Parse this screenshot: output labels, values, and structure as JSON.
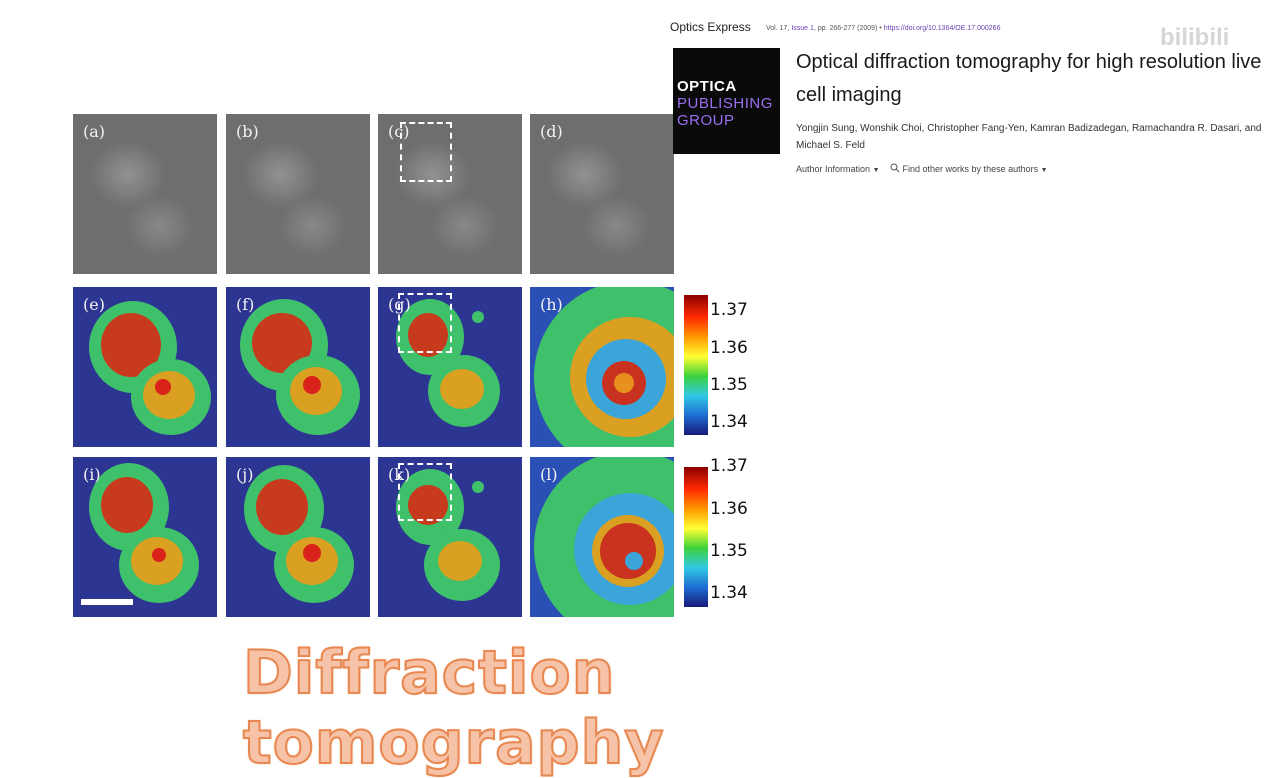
{
  "figure": {
    "panel_labels": [
      "(a)",
      "(b)",
      "(c)",
      "(d)",
      "(e)",
      "(f)",
      "(g)",
      "(h)",
      "(i)",
      "(j)",
      "(k)",
      "(l)"
    ],
    "colorbar_ticks": [
      "1.37",
      "1.36",
      "1.35",
      "1.34"
    ],
    "colormap": [
      "#8b0000",
      "#ff2a00",
      "#ff9900",
      "#ffff33",
      "#3cd23c",
      "#32c8e6",
      "#1e6ed2",
      "#16197a"
    ]
  },
  "article": {
    "journal": "Optics Express",
    "volume": "Vol. 17,",
    "issue": "Issue 1,",
    "pages": "pp. 266-277",
    "year": "(2009)",
    "bullet": "•",
    "doi": "https://doi.org/10.1364/OE.17.000266",
    "publisher_logo_lines": [
      "OPTICA",
      "PUBLISHING",
      "GROUP"
    ],
    "title": "Optical diffraction tomography for high resolution live cell imaging",
    "authors": "Yongjin Sung, Wonshik Choi, Christopher Fang-Yen, Kamran Badizadegan, Ramachandra R. Dasari, and Michael S. Feld",
    "author_info_label": "Author Information",
    "find_works_label": "Find other works by these authors"
  },
  "watermark": "bilibili",
  "caption": "Diffraction tomography"
}
